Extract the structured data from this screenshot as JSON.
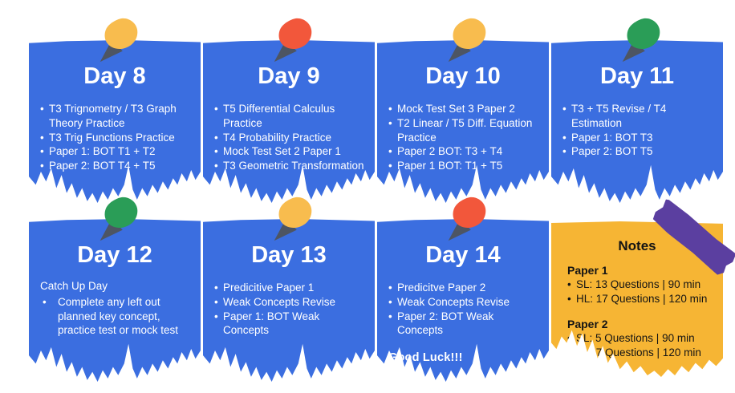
{
  "board": {
    "notes": [
      {
        "title": "Day 8",
        "pin": "yellow",
        "items": [
          "T3 Trignometry / T3 Graph Theory Practice",
          "T3 Trig Functions Practice",
          "Paper 1: BOT T1 + T2",
          "Paper 2: BOT T4 + T5"
        ]
      },
      {
        "title": "Day 9",
        "pin": "red",
        "items": [
          "T5 Differential Calculus Practice",
          "T4 Probability Practice",
          "Mock Test Set 2 Paper 1",
          "T3 Geometric Transformation"
        ]
      },
      {
        "title": "Day 10",
        "pin": "yellow",
        "items": [
          "Mock Test Set 3 Paper 2",
          "T2 Linear / T5 Diff. Equation Practice",
          "Paper 2 BOT: T3 + T4",
          "Paper 1 BOT: T1 + T5"
        ]
      },
      {
        "title": "Day 11",
        "pin": "green",
        "items": [
          "T3 + T5 Revise / T4 Estimation",
          "Paper 1: BOT T3",
          "Paper 2: BOT T5"
        ]
      },
      {
        "title": "Day 12",
        "pin": "green",
        "intro": "Catch Up Day",
        "items": [
          "Complete any left out planned key concept, practice test or mock test"
        ]
      },
      {
        "title": "Day 13",
        "pin": "yellow",
        "items": [
          "Predicitive Paper 1",
          "Weak Concepts Revise",
          "Paper 1: BOT Weak Concepts"
        ]
      },
      {
        "title": "Day 14",
        "pin": "red",
        "items": [
          "Predicitve Paper 2",
          "Weak Concepts Revise",
          "Paper 2: BOT Weak Concepts"
        ],
        "footer": "Good Luck!!!"
      }
    ],
    "notes_card": {
      "title": "Notes",
      "sections": [
        {
          "heading": "Paper 1",
          "items": [
            "SL: 13 Questions | 90 min",
            "HL: 17 Questions | 120 min"
          ]
        },
        {
          "heading": "Paper 2",
          "items": [
            "SL: 5 Questions | 90 min",
            "HL: 7 Questions | 120 min"
          ]
        }
      ]
    },
    "colors": {
      "note_blue": "#3B6EE0",
      "card_yellow": "#F6B534",
      "pin_yellow": "#F8BC4E",
      "pin_red": "#F2573B",
      "pin_green": "#2A9D57",
      "pin_needle": "#4D5563",
      "tape_purple": "#5B3FA0",
      "text_white": "#FFFFFF",
      "text_dark": "#141414"
    }
  }
}
